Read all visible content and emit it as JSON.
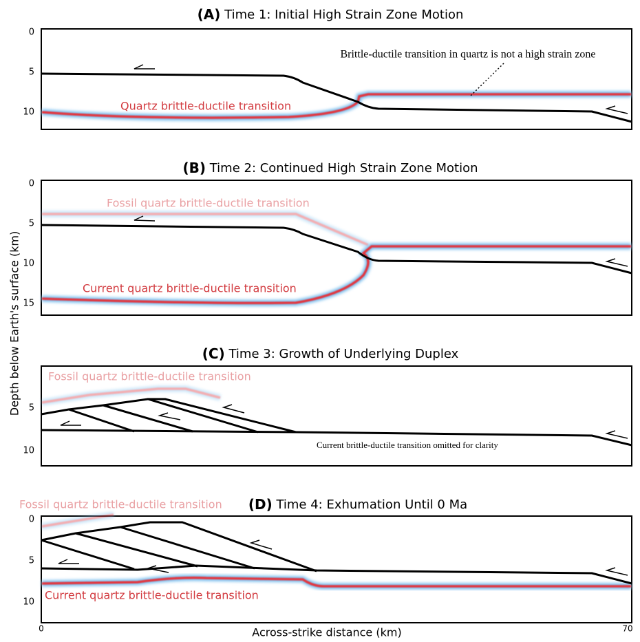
{
  "y_axis_label": "Depth below Earth's surface (km)",
  "x_axis": {
    "label": "Across-strike distance (km)",
    "ticks": [
      "0",
      "70"
    ]
  },
  "panels": [
    {
      "letter": "(A)",
      "title": "Time 1: Initial High Strain Zone Motion",
      "yticks": [
        "0",
        "5",
        "10"
      ],
      "labels": [
        "Quartz brittle-ductile transition"
      ],
      "annotation": "Brittle-ductile transition in quartz is not a high strain zone"
    },
    {
      "letter": "(B)",
      "title": "Time 2: Continued High Strain Zone Motion",
      "yticks": [
        "0",
        "5",
        "10",
        "15"
      ],
      "labels": [
        "Fossil quartz brittle-ductile transition",
        "Current quartz brittle-ductile transition"
      ]
    },
    {
      "letter": "(C)",
      "title": "Time 3: Growth of Underlying Duplex",
      "yticks": [
        "5",
        "10"
      ],
      "labels": [
        "Fossil quartz brittle-ductile transition"
      ],
      "annotation": "Current brittle-ductile transition omitted for clarity"
    },
    {
      "letter": "(D)",
      "title": "Time 4: Exhumation Until 0 Ma",
      "yticks": [
        "0",
        "5",
        "10"
      ],
      "labels": [
        "Fossil quartz brittle-ductile transition",
        "Current quartz brittle-ductile transition"
      ]
    }
  ]
}
